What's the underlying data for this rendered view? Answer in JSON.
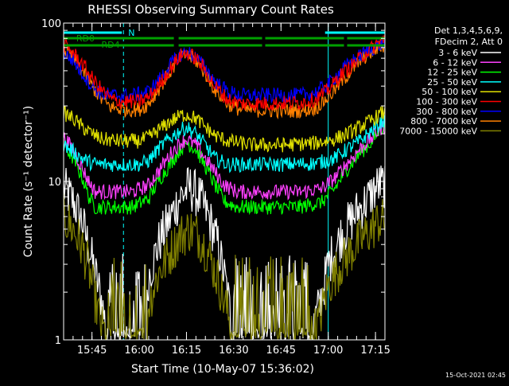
{
  "chart_data": {
    "type": "line",
    "title": "RHESSI Observing Summary Count Rates",
    "xlabel": "Start Time (10-May-07 15:36:02)",
    "ylabel": "Count Rate (s⁻¹ detector⁻¹)",
    "yscale": "log",
    "ylim": [
      1,
      100
    ],
    "xlim_minutes": [
      0,
      102
    ],
    "y_tick_labels": [
      "1",
      "10",
      "100"
    ],
    "x_ticks": [
      {
        "t": 9,
        "label": "15:45"
      },
      {
        "t": 24,
        "label": "16:00"
      },
      {
        "t": 39,
        "label": "16:15"
      },
      {
        "t": 54,
        "label": "16:30"
      },
      {
        "t": 69,
        "label": "16:45"
      },
      {
        "t": 84,
        "label": "17:00"
      },
      {
        "t": 99,
        "label": "17:15"
      }
    ],
    "legend_header": [
      "Det 1,3,4,5,6,9,",
      "FDecim 2, Att 0"
    ],
    "grid": false,
    "series": [
      {
        "name": "3 - 6 keV",
        "color": "#ffffff",
        "noisy": true,
        "points": [
          [
            0,
            9
          ],
          [
            3,
            7.5
          ],
          [
            6,
            5.5
          ],
          [
            9,
            3.2
          ],
          [
            12,
            1.8
          ],
          [
            14,
            1
          ],
          [
            20,
            1
          ],
          [
            26,
            1
          ],
          [
            27,
            2.5
          ],
          [
            30,
            4
          ],
          [
            34,
            6
          ],
          [
            37,
            8
          ],
          [
            40,
            9.2
          ],
          [
            43,
            8
          ],
          [
            46,
            6
          ],
          [
            49,
            4
          ],
          [
            52,
            2
          ],
          [
            54,
            1
          ],
          [
            60,
            1
          ],
          [
            66,
            1
          ],
          [
            72,
            1
          ],
          [
            78,
            1
          ],
          [
            81,
            1.6
          ],
          [
            84,
            3
          ],
          [
            88,
            4.5
          ],
          [
            92,
            6
          ],
          [
            96,
            7.5
          ],
          [
            100,
            9.5
          ]
        ]
      },
      {
        "name": "6 - 12 keV",
        "color": "#ff40ff",
        "noisy": false,
        "points": [
          [
            0,
            19
          ],
          [
            3,
            16
          ],
          [
            6,
            12
          ],
          [
            8,
            10
          ],
          [
            10,
            8.6
          ],
          [
            16,
            8.6
          ],
          [
            22,
            8.6
          ],
          [
            27,
            9.5
          ],
          [
            30,
            11.5
          ],
          [
            34,
            15
          ],
          [
            37,
            17.5
          ],
          [
            39,
            18.5
          ],
          [
            42,
            17
          ],
          [
            45,
            14
          ],
          [
            48,
            11.5
          ],
          [
            51,
            9.5
          ],
          [
            55,
            8.6
          ],
          [
            65,
            8.6
          ],
          [
            75,
            8.6
          ],
          [
            82,
            9
          ],
          [
            86,
            10.5
          ],
          [
            90,
            13
          ],
          [
            94,
            16
          ],
          [
            98,
            19
          ],
          [
            101,
            22
          ]
        ]
      },
      {
        "name": "12 - 25 keV",
        "color": "#00ff00",
        "noisy": false,
        "points": [
          [
            0,
            17
          ],
          [
            3,
            14
          ],
          [
            6,
            10.5
          ],
          [
            8,
            8
          ],
          [
            10,
            6.9
          ],
          [
            16,
            6.9
          ],
          [
            22,
            6.9
          ],
          [
            27,
            7.8
          ],
          [
            30,
            10
          ],
          [
            34,
            13
          ],
          [
            37,
            16
          ],
          [
            39,
            17.5
          ],
          [
            42,
            16
          ],
          [
            45,
            12.5
          ],
          [
            48,
            9.5
          ],
          [
            51,
            7.5
          ],
          [
            55,
            6.9
          ],
          [
            65,
            6.9
          ],
          [
            75,
            6.9
          ],
          [
            82,
            7.4
          ],
          [
            86,
            9
          ],
          [
            90,
            12
          ],
          [
            94,
            15
          ],
          [
            98,
            18
          ],
          [
            101,
            22
          ]
        ]
      },
      {
        "name": "25 - 50 keV",
        "color": "#00ffff",
        "noisy": false,
        "points": [
          [
            0,
            17
          ],
          [
            3,
            15.5
          ],
          [
            6,
            14
          ],
          [
            9,
            13
          ],
          [
            12,
            12.8
          ],
          [
            18,
            12.8
          ],
          [
            24,
            12.8
          ],
          [
            27,
            13.5
          ],
          [
            30,
            16
          ],
          [
            34,
            19
          ],
          [
            37,
            21
          ],
          [
            39,
            22
          ],
          [
            42,
            20
          ],
          [
            45,
            17
          ],
          [
            48,
            14
          ],
          [
            52,
            12.8
          ],
          [
            60,
            12.8
          ],
          [
            70,
            12.8
          ],
          [
            80,
            13
          ],
          [
            86,
            14
          ],
          [
            90,
            16
          ],
          [
            94,
            18
          ],
          [
            98,
            21
          ],
          [
            101,
            24
          ]
        ]
      },
      {
        "name": "50 - 100 keV",
        "color": "#e0e000",
        "noisy": false,
        "points": [
          [
            0,
            27
          ],
          [
            3,
            25
          ],
          [
            6,
            22
          ],
          [
            9,
            20
          ],
          [
            12,
            18.5
          ],
          [
            18,
            18
          ],
          [
            24,
            18
          ],
          [
            27,
            19
          ],
          [
            30,
            21
          ],
          [
            34,
            24
          ],
          [
            37,
            26
          ],
          [
            39,
            26.5
          ],
          [
            42,
            25
          ],
          [
            45,
            22
          ],
          [
            48,
            19.5
          ],
          [
            52,
            18
          ],
          [
            60,
            17
          ],
          [
            70,
            17
          ],
          [
            80,
            17.5
          ],
          [
            86,
            18.5
          ],
          [
            90,
            20
          ],
          [
            94,
            22
          ],
          [
            98,
            24.5
          ],
          [
            101,
            27
          ]
        ]
      },
      {
        "name": "100 - 300 keV",
        "color": "#ff0000",
        "noisy": false,
        "points": [
          [
            0,
            73
          ],
          [
            3,
            65
          ],
          [
            6,
            55
          ],
          [
            9,
            45
          ],
          [
            12,
            38
          ],
          [
            15,
            33
          ],
          [
            18,
            32
          ],
          [
            24,
            32
          ],
          [
            27,
            34
          ],
          [
            30,
            40
          ],
          [
            34,
            52
          ],
          [
            37,
            62
          ],
          [
            39,
            65
          ],
          [
            42,
            60
          ],
          [
            45,
            50
          ],
          [
            48,
            40
          ],
          [
            52,
            33
          ],
          [
            56,
            31
          ],
          [
            65,
            31
          ],
          [
            75,
            31.5
          ],
          [
            80,
            33
          ],
          [
            84,
            38
          ],
          [
            88,
            47
          ],
          [
            92,
            55
          ],
          [
            96,
            65
          ],
          [
            101,
            78
          ]
        ]
      },
      {
        "name": "300 - 800 keV",
        "color": "#0000ff",
        "noisy": false,
        "points": [
          [
            0,
            65
          ],
          [
            3,
            58
          ],
          [
            6,
            48
          ],
          [
            9,
            40
          ],
          [
            12,
            36
          ],
          [
            15,
            35
          ],
          [
            22,
            35
          ],
          [
            27,
            37
          ],
          [
            30,
            43
          ],
          [
            34,
            55
          ],
          [
            37,
            63
          ],
          [
            39,
            66
          ],
          [
            42,
            61
          ],
          [
            45,
            52
          ],
          [
            48,
            43
          ],
          [
            52,
            37
          ],
          [
            56,
            35
          ],
          [
            65,
            35
          ],
          [
            75,
            35
          ],
          [
            80,
            36.5
          ],
          [
            84,
            41
          ],
          [
            88,
            50
          ],
          [
            92,
            58
          ],
          [
            96,
            66
          ],
          [
            101,
            74
          ]
        ]
      },
      {
        "name": "800 - 7000 keV",
        "color": "#ff8000",
        "noisy": false,
        "points": [
          [
            0,
            68
          ],
          [
            3,
            60
          ],
          [
            6,
            50
          ],
          [
            9,
            40
          ],
          [
            12,
            33
          ],
          [
            15,
            29.5
          ],
          [
            18,
            28.5
          ],
          [
            24,
            28.5
          ],
          [
            27,
            31
          ],
          [
            30,
            38
          ],
          [
            34,
            50
          ],
          [
            37,
            60
          ],
          [
            39,
            63
          ],
          [
            42,
            58
          ],
          [
            45,
            48
          ],
          [
            48,
            38
          ],
          [
            52,
            31
          ],
          [
            56,
            28.5
          ],
          [
            65,
            28
          ],
          [
            75,
            28
          ],
          [
            80,
            29
          ],
          [
            84,
            34
          ],
          [
            88,
            42
          ],
          [
            92,
            52
          ],
          [
            96,
            62
          ],
          [
            101,
            72
          ]
        ]
      },
      {
        "name": "7000 - 15000 keV",
        "color": "#808000",
        "noisy": true,
        "points": [
          [
            0,
            6
          ],
          [
            3,
            5
          ],
          [
            6,
            3.8
          ],
          [
            8,
            2.8
          ],
          [
            10,
            1.8
          ],
          [
            12,
            1.2
          ],
          [
            14,
            1
          ],
          [
            20,
            1
          ],
          [
            26,
            1
          ],
          [
            27,
            1.7
          ],
          [
            30,
            2.6
          ],
          [
            34,
            3.6
          ],
          [
            37,
            4.5
          ],
          [
            40,
            5
          ],
          [
            43,
            4.5
          ],
          [
            46,
            3.5
          ],
          [
            49,
            2.4
          ],
          [
            52,
            1.5
          ],
          [
            54,
            1
          ],
          [
            60,
            1
          ],
          [
            66,
            1
          ],
          [
            72,
            1
          ],
          [
            78,
            1
          ],
          [
            81,
            1.3
          ],
          [
            84,
            2.2
          ],
          [
            88,
            3
          ],
          [
            92,
            3.8
          ],
          [
            96,
            4.6
          ],
          [
            100,
            5.6
          ]
        ]
      }
    ],
    "annotations": [
      {
        "label": "N",
        "color": "#00ffff",
        "t_start": 0,
        "t_end": 102,
        "gap_start": 19,
        "gap_end": 83,
        "y_pos": "top"
      },
      {
        "label": "RD0",
        "color": "#00a000",
        "t_start": 0,
        "t_end": 27,
        "y_pos": "upper"
      },
      {
        "label": "RD4",
        "color": "#00a000",
        "t_start": 0,
        "t_end": 26.5,
        "y_pos": "lower"
      }
    ],
    "green_bars": [
      {
        "t_start": 17.5,
        "t_end": 35
      },
      {
        "t_start": 36.5,
        "t_end": 63
      },
      {
        "t_start": 64,
        "t_end": 89
      },
      {
        "t_start": 90,
        "t_end": 102
      }
    ],
    "vlines_solid": [
      0,
      84
    ],
    "vlines_dashed": [
      19,
      102
    ],
    "step_drops": [
      {
        "t": 14.5,
        "label": ""
      },
      {
        "t": 35,
        "label": ""
      },
      {
        "t": 63,
        "label": ""
      },
      {
        "t": 89,
        "label": ""
      }
    ]
  },
  "footer_timestamp": "15-Oct-2021 02:45"
}
